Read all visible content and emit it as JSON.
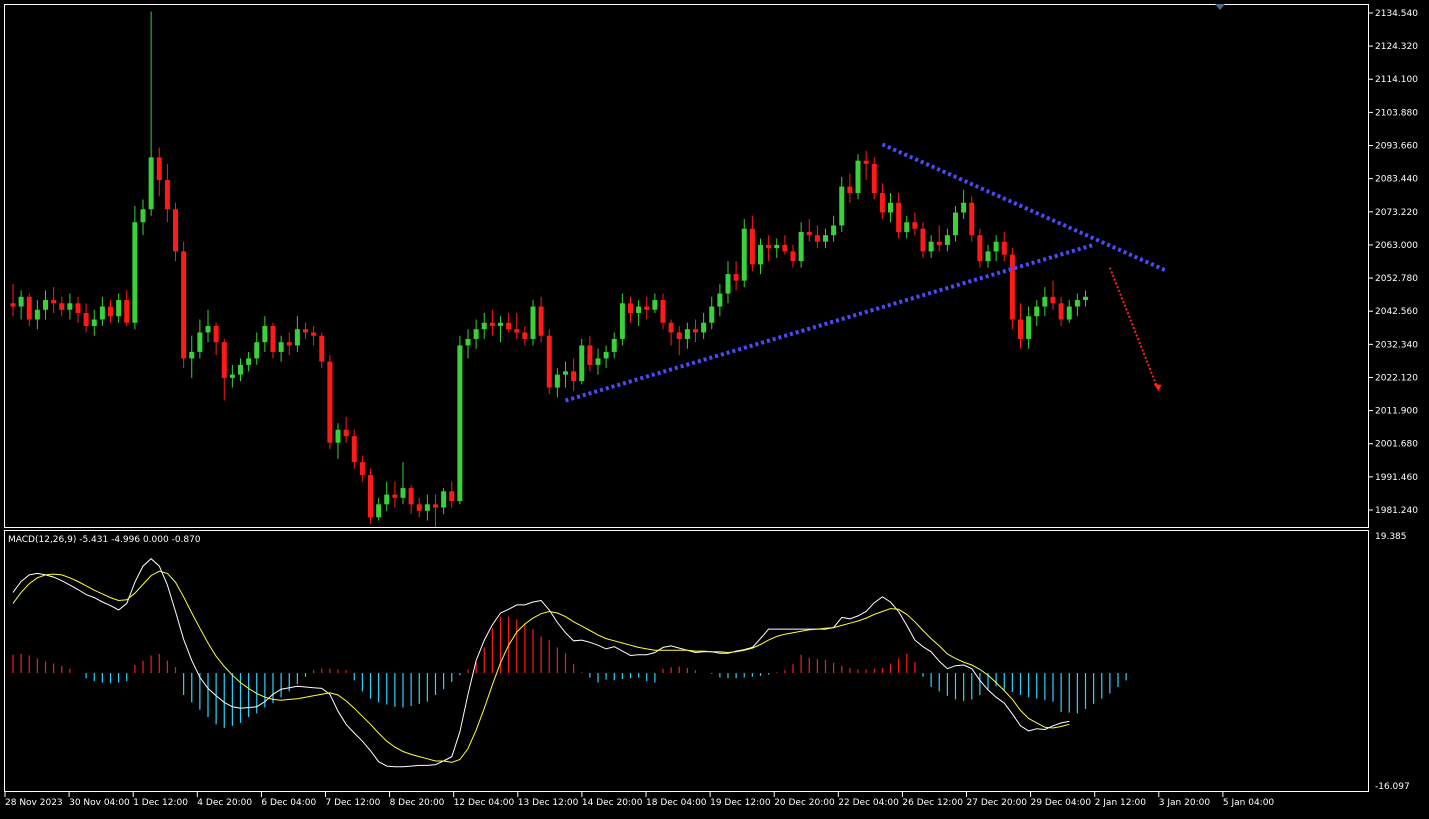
{
  "chart_data": [
    {
      "type": "candlestick",
      "title": "",
      "colors": {
        "background": "#000000",
        "up": "#3ad13a",
        "down": "#ff1a1a",
        "grid_frame": "#ffffff",
        "trendline": "#4a4aff",
        "projection": "#ff2020"
      },
      "y_axis": {
        "ylim": [
          1976,
          2137
        ],
        "ticks": [
          "2134.540",
          "2124.320",
          "2114.100",
          "2103.880",
          "2093.660",
          "2083.440",
          "2073.220",
          "2063.000",
          "2052.780",
          "2042.560",
          "2032.340",
          "2022.120",
          "2011.900",
          "2001.680",
          "1991.460",
          "1981.240"
        ]
      },
      "x_axis": {
        "ticks": [
          "28 Nov 2023",
          "30 Nov 04:00",
          "1 Dec 12:00",
          "4 Dec 20:00",
          "6 Dec 04:00",
          "7 Dec 12:00",
          "8 Dec 20:00",
          "12 Dec 04:00",
          "13 Dec 12:00",
          "14 Dec 20:00",
          "18 Dec 04:00",
          "19 Dec 12:00",
          "20 Dec 20:00",
          "22 Dec 04:00",
          "26 Dec 12:00",
          "27 Dec 20:00",
          "29 Dec 04:00",
          "2 Jan 12:00",
          "3 Jan 20:00",
          "5 Jan 04:00"
        ]
      },
      "candles": [
        [
          2045,
          2051,
          2041,
          2044
        ],
        [
          2044,
          2049,
          2040,
          2047
        ],
        [
          2047,
          2048,
          2038,
          2040
        ],
        [
          2040,
          2046,
          2037,
          2043
        ],
        [
          2043,
          2049,
          2040,
          2046
        ],
        [
          2046,
          2050,
          2042,
          2045
        ],
        [
          2045,
          2047,
          2041,
          2043
        ],
        [
          2043,
          2048,
          2040,
          2045
        ],
        [
          2045,
          2047,
          2039,
          2042
        ],
        [
          2042,
          2045,
          2036,
          2038
        ],
        [
          2038,
          2043,
          2035,
          2040
        ],
        [
          2040,
          2047,
          2038,
          2044
        ],
        [
          2044,
          2046,
          2039,
          2041
        ],
        [
          2041,
          2048,
          2039,
          2046
        ],
        [
          2046,
          2049,
          2038,
          2039
        ],
        [
          2039,
          2075,
          2037,
          2070
        ],
        [
          2070,
          2077,
          2066,
          2074
        ],
        [
          2074,
          2135,
          2072,
          2090
        ],
        [
          2090,
          2093,
          2078,
          2083
        ],
        [
          2083,
          2088,
          2070,
          2074
        ],
        [
          2074,
          2076,
          2058,
          2061
        ],
        [
          2061,
          2064,
          2025,
          2028
        ],
        [
          2028,
          2035,
          2022,
          2030
        ],
        [
          2030,
          2040,
          2028,
          2036
        ],
        [
          2036,
          2043,
          2033,
          2038
        ],
        [
          2038,
          2039,
          2029,
          2033
        ],
        [
          2033,
          2034,
          2015,
          2022
        ],
        [
          2022,
          2026,
          2019,
          2023
        ],
        [
          2023,
          2028,
          2021,
          2026
        ],
        [
          2026,
          2030,
          2024,
          2028
        ],
        [
          2028,
          2036,
          2026,
          2033
        ],
        [
          2033,
          2041,
          2030,
          2038
        ],
        [
          2038,
          2039,
          2028,
          2030
        ],
        [
          2030,
          2035,
          2027,
          2033
        ],
        [
          2033,
          2036,
          2029,
          2032
        ],
        [
          2032,
          2041,
          2030,
          2037
        ],
        [
          2037,
          2039,
          2034,
          2036
        ],
        [
          2036,
          2038,
          2032,
          2035
        ],
        [
          2035,
          2036,
          2025,
          2027
        ],
        [
          2027,
          2029,
          2000,
          2002
        ],
        [
          2002,
          2008,
          1997,
          2006
        ],
        [
          2006,
          2010,
          2002,
          2004
        ],
        [
          2004,
          2006,
          1994,
          1996
        ],
        [
          1996,
          1998,
          1990,
          1992
        ],
        [
          1992,
          1994,
          1977,
          1979
        ],
        [
          1979,
          1985,
          1978,
          1983
        ],
        [
          1983,
          1990,
          1981,
          1986
        ],
        [
          1986,
          1990,
          1982,
          1985
        ],
        [
          1985,
          1996,
          1983,
          1988
        ],
        [
          1988,
          1989,
          1980,
          1983
        ],
        [
          1983,
          1985,
          1979,
          1981
        ],
        [
          1981,
          1986,
          1978,
          1983
        ],
        [
          1983,
          1986,
          1976,
          1982
        ],
        [
          1982,
          1988,
          1980,
          1987
        ],
        [
          1987,
          1990,
          1982,
          1984
        ],
        [
          1984,
          2035,
          1983,
          2032
        ],
        [
          2032,
          2037,
          2028,
          2034
        ],
        [
          2034,
          2040,
          2031,
          2037
        ],
        [
          2037,
          2042,
          2034,
          2039
        ],
        [
          2039,
          2043,
          2035,
          2038
        ],
        [
          2038,
          2041,
          2033,
          2039
        ],
        [
          2039,
          2042,
          2036,
          2037
        ],
        [
          2037,
          2042,
          2034,
          2036
        ],
        [
          2036,
          2038,
          2032,
          2034
        ],
        [
          2034,
          2046,
          2032,
          2044
        ],
        [
          2044,
          2047,
          2033,
          2035
        ],
        [
          2035,
          2037,
          2017,
          2019
        ],
        [
          2019,
          2025,
          2016,
          2023
        ],
        [
          2023,
          2027,
          2019,
          2024
        ],
        [
          2024,
          2028,
          2018,
          2021
        ],
        [
          2021,
          2034,
          2020,
          2032
        ],
        [
          2032,
          2035,
          2024,
          2026
        ],
        [
          2026,
          2031,
          2023,
          2028
        ],
        [
          2028,
          2032,
          2025,
          2030
        ],
        [
          2030,
          2036,
          2028,
          2034
        ],
        [
          2034,
          2048,
          2032,
          2045
        ],
        [
          2045,
          2047,
          2039,
          2042
        ],
        [
          2042,
          2046,
          2038,
          2044
        ],
        [
          2044,
          2047,
          2040,
          2043
        ],
        [
          2043,
          2048,
          2042,
          2046
        ],
        [
          2046,
          2048,
          2037,
          2039
        ],
        [
          2039,
          2040,
          2032,
          2036
        ],
        [
          2036,
          2038,
          2029,
          2034
        ],
        [
          2034,
          2039,
          2031,
          2037
        ],
        [
          2037,
          2040,
          2033,
          2036
        ],
        [
          2036,
          2042,
          2034,
          2039
        ],
        [
          2039,
          2047,
          2037,
          2044
        ],
        [
          2044,
          2051,
          2041,
          2048
        ],
        [
          2048,
          2058,
          2045,
          2054
        ],
        [
          2054,
          2058,
          2049,
          2052
        ],
        [
          2052,
          2071,
          2050,
          2068
        ],
        [
          2068,
          2072,
          2055,
          2057
        ],
        [
          2057,
          2065,
          2054,
          2063
        ],
        [
          2063,
          2066,
          2058,
          2062
        ],
        [
          2062,
          2065,
          2059,
          2063
        ],
        [
          2063,
          2066,
          2060,
          2061
        ],
        [
          2061,
          2063,
          2056,
          2058
        ],
        [
          2058,
          2070,
          2056,
          2067
        ],
        [
          2067,
          2071,
          2064,
          2066
        ],
        [
          2066,
          2069,
          2062,
          2064
        ],
        [
          2064,
          2068,
          2062,
          2066
        ],
        [
          2066,
          2072,
          2064,
          2069
        ],
        [
          2069,
          2084,
          2067,
          2081
        ],
        [
          2081,
          2085,
          2076,
          2079
        ],
        [
          2079,
          2091,
          2077,
          2089
        ],
        [
          2089,
          2092,
          2083,
          2088
        ],
        [
          2088,
          2090,
          2077,
          2079
        ],
        [
          2079,
          2082,
          2071,
          2073
        ],
        [
          2073,
          2079,
          2070,
          2076
        ],
        [
          2076,
          2079,
          2065,
          2067
        ],
        [
          2067,
          2072,
          2065,
          2070
        ],
        [
          2070,
          2073,
          2066,
          2068
        ],
        [
          2068,
          2070,
          2059,
          2061
        ],
        [
          2061,
          2066,
          2059,
          2064
        ],
        [
          2064,
          2069,
          2061,
          2063
        ],
        [
          2063,
          2068,
          2061,
          2066
        ],
        [
          2066,
          2075,
          2064,
          2073
        ],
        [
          2073,
          2080,
          2071,
          2076
        ],
        [
          2076,
          2078,
          2064,
          2066
        ],
        [
          2066,
          2068,
          2056,
          2058
        ],
        [
          2058,
          2063,
          2056,
          2061
        ],
        [
          2061,
          2066,
          2058,
          2064
        ],
        [
          2064,
          2067,
          2058,
          2060
        ],
        [
          2060,
          2062,
          2037,
          2040
        ],
        [
          2040,
          2045,
          2031,
          2034
        ],
        [
          2034,
          2044,
          2031,
          2041
        ],
        [
          2041,
          2046,
          2038,
          2044
        ],
        [
          2044,
          2050,
          2041,
          2047
        ],
        [
          2047,
          2052,
          2043,
          2045
        ],
        [
          2045,
          2047,
          2038,
          2040
        ],
        [
          2040,
          2046,
          2039,
          2044
        ],
        [
          2044,
          2048,
          2041,
          2046
        ],
        [
          2046,
          2049,
          2044,
          2047
        ]
      ],
      "trendlines": [
        {
          "style": "dotted",
          "color": "#4a4aff",
          "from": {
            "bar": 68,
            "price": 2015
          },
          "to": {
            "bar": 133,
            "price": 2063
          }
        },
        {
          "style": "dotted",
          "color": "#4a4aff",
          "from": {
            "bar": 107,
            "price": 2094
          },
          "to": {
            "bar": 142,
            "price": 2055
          }
        },
        {
          "style": "dotted",
          "color": "#ff2020",
          "from": {
            "bar": 135,
            "price": 2056
          },
          "to": {
            "bar": 141,
            "price": 2018
          }
        }
      ]
    },
    {
      "type": "bar+line",
      "title": "MACD(12,26,9) -5.431 -4.996 0.000 -0.870",
      "y_axis": {
        "ylim": [
          -16.097,
          19.385
        ],
        "ticks": [
          "19.385",
          "-16.097"
        ]
      },
      "series": [
        {
          "name": "",
          "kind": "histogram",
          "colors": {
            "positive": "#ff1a1a",
            "negative": "#2ad4ff"
          }
        },
        {
          "name": "",
          "kind": "line",
          "color": "#ffffff"
        },
        {
          "name": "",
          "kind": "line",
          "color": "#ffff33"
        }
      ],
      "histogram": [
        2.5,
        2.6,
        2.4,
        2.0,
        1.6,
        1.3,
        1.0,
        0.6,
        0,
        -0.7,
        -1.1,
        -1.3,
        -1.4,
        -1.3,
        -1.1,
        1.1,
        1.7,
        2.4,
        2.6,
        1.7,
        0.8,
        -3,
        -4,
        -5,
        -6,
        -7,
        -7.5,
        -7.2,
        -6.8,
        -6,
        -5.5,
        -4.7,
        -4.1,
        -3.3,
        -2.5,
        -1.5,
        -0.5,
        0.4,
        0.6,
        0.6,
        0.5,
        0.4,
        -1.0,
        -2.5,
        -3.5,
        -4.0,
        -4.3,
        -4.6,
        -4.7,
        -4.5,
        -4.2,
        -3.9,
        -3.0,
        -2.2,
        -1.2,
        -0.3,
        0.5,
        1.5,
        3.5,
        6.1,
        7.7,
        7.7,
        7.3,
        6.8,
        6.0,
        5.0,
        4.5,
        3.5,
        2.7,
        1.2,
        0.1,
        -0.6,
        -1.3,
        -0.9,
        -1.0,
        -0.8,
        -0.7,
        -0.6,
        -1.1,
        -1.3,
        0.6,
        0.8,
        0.9,
        0.7,
        0.4,
        0,
        -0.1,
        -0.6,
        -0.7,
        -0.7,
        -0.6,
        -0.5,
        -0.4,
        -0.2,
        0.1,
        0.4,
        1.2,
        2.5,
        2.1,
        1.9,
        1.8,
        1.4,
        1.0,
        0.7,
        0.5,
        0.5,
        0.6,
        0.7,
        1.3,
        2.0,
        2.6,
        1.5,
        -0.5,
        -1.9,
        -2.5,
        -3.1,
        -3.6,
        -3.8,
        -3.6,
        -3.0,
        -2.2,
        -1.8,
        -2.3,
        -2.6,
        -3.0,
        -3.3,
        -3.5,
        -3.7,
        -3.9,
        -5.3,
        -5.4,
        -5.5,
        -4.9,
        -4.2,
        -3.5,
        -2.8,
        -1.9,
        -1.0
      ],
      "macd_line": [
        11,
        12.5,
        13.4,
        13.6,
        13.4,
        13.1,
        12.6,
        12.0,
        11.4,
        10.7,
        10.3,
        9.7,
        9.2,
        8.6,
        9.5,
        12.4,
        14.6,
        15.6,
        14.6,
        12.0,
        8.4,
        4.6,
        1.7,
        -0.6,
        -2.1,
        -3.1,
        -4.0,
        -4.6,
        -4.8,
        -4.7,
        -4.6,
        -3.9,
        -2.9,
        -2.2,
        -2.0,
        -1.8,
        -1.9,
        -2.0,
        -2.1,
        -2.9,
        -5.2,
        -7.0,
        -8.2,
        -9.3,
        -10.6,
        -12.1,
        -12.7,
        -12.8,
        -12.8,
        -12.7,
        -12.6,
        -12.6,
        -12.5,
        -12.0,
        -11.4,
        -8.0,
        -2.9,
        1.7,
        4.5,
        6.6,
        8.2,
        8.7,
        9.3,
        9.3,
        9.7,
        9.9,
        8.6,
        6.9,
        5.5,
        4.4,
        4.5,
        4.2,
        3.8,
        3.3,
        3.6,
        3.0,
        2.4,
        2.5,
        2.5,
        2.8,
        3.5,
        3.7,
        3.4,
        3.1,
        2.8,
        2.9,
        2.9,
        2.7,
        2.7,
        3.0,
        3.2,
        3.5,
        4.7,
        6.0,
        6.0,
        6.0,
        6.0,
        6.0,
        6.0,
        6.0,
        6.0,
        6.2,
        7.6,
        7.4,
        7.8,
        8.4,
        9.6,
        10.4,
        9.7,
        8.4,
        6.5,
        4.5,
        3.6,
        2.9,
        1.6,
        0.6,
        1.0,
        1.1,
        0.6,
        -1.0,
        -2.3,
        -3.3,
        -4.1,
        -5.6,
        -7.2,
        -7.9,
        -7.6,
        -7.7,
        -7.2,
        -6.8,
        -6.6
      ],
      "signal_line": [
        9.5,
        11.0,
        12.2,
        13.0,
        13.4,
        13.5,
        13.4,
        13.0,
        12.5,
        11.9,
        11.3,
        10.8,
        10.3,
        9.9,
        10.0,
        10.9,
        12.1,
        13.3,
        13.9,
        13.6,
        12.4,
        10.4,
        8.2,
        6.1,
        4.1,
        2.3,
        0.9,
        -0.3,
        -1.3,
        -2.1,
        -2.8,
        -3.3,
        -3.6,
        -3.7,
        -3.6,
        -3.5,
        -3.3,
        -3.1,
        -2.9,
        -2.7,
        -3.0,
        -3.8,
        -4.8,
        -5.9,
        -7.0,
        -8.2,
        -9.3,
        -10.1,
        -10.7,
        -11.1,
        -11.4,
        -11.7,
        -12.0,
        -12.0,
        -12.2,
        -11.8,
        -10.3,
        -7.8,
        -4.8,
        -1.6,
        1.4,
        3.8,
        5.6,
        6.7,
        7.5,
        8.1,
        8.4,
        8.2,
        7.7,
        7.0,
        6.4,
        5.8,
        5.2,
        4.7,
        4.4,
        4.1,
        3.8,
        3.5,
        3.3,
        3.1,
        3.1,
        3.1,
        3.1,
        3.1,
        3.0,
        3.0,
        2.9,
        2.9,
        2.8,
        2.9,
        3.1,
        3.4,
        3.9,
        4.5,
        5.0,
        5.3,
        5.5,
        5.7,
        5.9,
        6.0,
        6.1,
        6.2,
        6.5,
        6.8,
        7.1,
        7.5,
        8.0,
        8.4,
        8.8,
        8.7,
        8.0,
        7.0,
        5.8,
        4.7,
        3.7,
        2.6,
        2.0,
        1.5,
        1.1,
        0.5,
        -0.3,
        -1.3,
        -2.4,
        -3.6,
        -5.1,
        -6.2,
        -6.8,
        -7.4,
        -7.5,
        -7.3,
        -7.0
      ]
    }
  ]
}
